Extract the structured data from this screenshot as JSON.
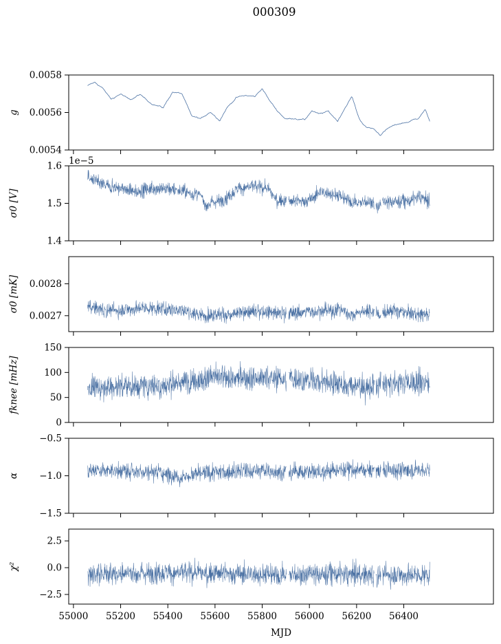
{
  "figure": {
    "title": "000309",
    "xlabel": "MJD",
    "series_color": "#4c72a4"
  },
  "chart_data": [
    {
      "type": "line",
      "ylabel": "g",
      "ylim": [
        0.0054,
        0.0058
      ],
      "yticks": [
        0.0054,
        0.0056,
        0.0058
      ],
      "ytick_labels": [
        "0.0054",
        "0.0056",
        "0.0058"
      ],
      "offset_text": "",
      "xlim": [
        54980,
        56780
      ],
      "xticks": [
        55000,
        55200,
        55400,
        55600,
        55800,
        56000,
        56200,
        56400
      ],
      "xtick_labels_visible": false,
      "series": [
        {
          "values_x": [
            55060,
            55090,
            55120,
            55160,
            55200,
            55240,
            55280,
            55330,
            55380,
            55420,
            55460,
            55500,
            55540,
            55580,
            55620,
            55650,
            55690,
            55730,
            55770,
            55800,
            55830,
            55860,
            55900,
            55940,
            55980,
            56010,
            56040,
            56080,
            56120,
            56150,
            56180,
            56210,
            56240,
            56270,
            56300,
            56340,
            56380,
            56420,
            56460,
            56490,
            56510
          ],
          "values_y": [
            0.005742,
            0.00576,
            0.005735,
            0.00567,
            0.0057,
            0.005665,
            0.005695,
            0.00565,
            0.005625,
            0.00571,
            0.0057,
            0.00558,
            0.005565,
            0.005605,
            0.00556,
            0.005625,
            0.00568,
            0.00569,
            0.005685,
            0.00573,
            0.005665,
            0.005615,
            0.005565,
            0.00557,
            0.00556,
            0.00561,
            0.00559,
            0.005605,
            0.005555,
            0.005625,
            0.005685,
            0.00557,
            0.00552,
            0.005515,
            0.005482,
            0.00552,
            0.00554,
            0.00555,
            0.00557,
            0.005615,
            0.005555
          ],
          "noise": 8e-06,
          "dense": false
        }
      ]
    },
    {
      "type": "line",
      "ylabel": "σ0 [V]",
      "ylim": [
        1.4,
        1.6
      ],
      "yticks": [
        1.4,
        1.5,
        1.6
      ],
      "ytick_labels": [
        "1.4",
        "1.5",
        "1.6"
      ],
      "offset_text": "1e−5",
      "xlim": [
        54980,
        56780
      ],
      "xticks": [
        55000,
        55200,
        55400,
        55600,
        55800,
        56000,
        56200,
        56400
      ],
      "xtick_labels_visible": false,
      "series": [
        {
          "values_x": [
            55060,
            55120,
            55200,
            55260,
            55330,
            55400,
            55450,
            55500,
            55540,
            55560,
            55600,
            55640,
            55700,
            55760,
            55820,
            55860,
            55900,
            55960,
            56010,
            56040,
            56100,
            56160,
            56200,
            56260,
            56290,
            56310,
            56360,
            56420,
            56470,
            56510
          ],
          "values_y": [
            1.57,
            1.55,
            1.54,
            1.53,
            1.54,
            1.54,
            1.535,
            1.525,
            1.52,
            1.495,
            1.505,
            1.51,
            1.54,
            1.545,
            1.54,
            1.51,
            1.505,
            1.505,
            1.51,
            1.53,
            1.525,
            1.51,
            1.5,
            1.505,
            1.49,
            1.5,
            1.505,
            1.505,
            1.52,
            1.5
          ],
          "noise": 0.018,
          "dense": true
        }
      ]
    },
    {
      "type": "line",
      "ylabel": "σ0 [mK]",
      "ylim": [
        0.00265,
        0.002885
      ],
      "yticks": [
        0.0027,
        0.0028
      ],
      "ytick_labels": [
        "0.0027",
        "0.0028"
      ],
      "offset_text": "",
      "xlim": [
        54980,
        56780
      ],
      "xticks": [
        55000,
        55200,
        55400,
        55600,
        55800,
        56000,
        56200,
        56400
      ],
      "xtick_labels_visible": false,
      "series": [
        {
          "values_x": [
            55060,
            55120,
            55180,
            55240,
            55300,
            55360,
            55420,
            55480,
            55540,
            55600,
            55660,
            55720,
            55780,
            55840,
            55900,
            55960,
            56020,
            56080,
            56140,
            56180,
            56220,
            56260,
            56300,
            56340,
            56400,
            56450,
            56510
          ],
          "values_y": [
            0.00273,
            0.00272,
            0.002715,
            0.00272,
            0.002725,
            0.00272,
            0.00272,
            0.002715,
            0.0027,
            0.002705,
            0.0027,
            0.002712,
            0.002712,
            0.00271,
            0.002705,
            0.002712,
            0.002712,
            0.002715,
            0.00272,
            0.0027,
            0.002712,
            0.002715,
            0.002705,
            0.002715,
            0.00271,
            0.002705,
            0.002705
          ],
          "noise": 2.2e-05,
          "dense": true
        }
      ]
    },
    {
      "type": "line",
      "ylabel": "fknee [mHz]",
      "ylim": [
        0,
        150
      ],
      "yticks": [
        0,
        50,
        100,
        150
      ],
      "ytick_labels": [
        "0",
        "50",
        "100",
        "150"
      ],
      "offset_text": "",
      "xlim": [
        54980,
        56780
      ],
      "xticks": [
        55000,
        55200,
        55400,
        55600,
        55800,
        56000,
        56200,
        56400
      ],
      "xtick_labels_visible": false,
      "series": [
        {
          "values_x": [
            55060,
            55200,
            55400,
            55500,
            55600,
            55700,
            55800,
            55900,
            56000,
            56100,
            56200,
            56260,
            56300,
            56400,
            56510
          ],
          "values_y": [
            70,
            72,
            75,
            82,
            92,
            88,
            90,
            88,
            85,
            80,
            72,
            70,
            75,
            80,
            80
          ],
          "noise": 24,
          "dense": true
        }
      ]
    },
    {
      "type": "line",
      "ylabel": "α",
      "ylim": [
        -1.5,
        -0.5
      ],
      "yticks": [
        -1.5,
        -1.0,
        -0.5
      ],
      "ytick_labels": [
        "−1.5",
        "−1.0",
        "−0.5"
      ],
      "offset_text": "",
      "xlim": [
        54980,
        56780
      ],
      "xticks": [
        55000,
        55200,
        55400,
        55600,
        55800,
        56000,
        56200,
        56400
      ],
      "xtick_labels_visible": false,
      "series": [
        {
          "values_x": [
            55060,
            55200,
            55350,
            55450,
            55550,
            55700,
            55850,
            56000,
            56100,
            56200,
            56300,
            56400,
            56510
          ],
          "values_y": [
            -0.92,
            -0.93,
            -0.95,
            -1.02,
            -0.97,
            -0.93,
            -0.94,
            -0.95,
            -0.93,
            -0.92,
            -0.93,
            -0.93,
            -0.92
          ],
          "noise": 0.11,
          "dense": true
        }
      ]
    },
    {
      "type": "line",
      "ylabel": "χ²",
      "ylim": [
        -3.4,
        3.6
      ],
      "yticks": [
        -2.5,
        0.0,
        2.5
      ],
      "ytick_labels": [
        "−2.5",
        "0.0",
        "2.5"
      ],
      "offset_text": "",
      "xlim": [
        54980,
        56780
      ],
      "xticks": [
        55000,
        55200,
        55400,
        55600,
        55800,
        56000,
        56200,
        56400
      ],
      "xtick_labels": [
        "55000",
        "55200",
        "55400",
        "55600",
        "55800",
        "56000",
        "56200",
        "56400"
      ],
      "xtick_labels_visible": true,
      "series": [
        {
          "values_x": [
            55060,
            55300,
            55500,
            55700,
            55900,
            56100,
            56300,
            56510
          ],
          "values_y": [
            -0.6,
            -0.5,
            -0.5,
            -0.6,
            -0.7,
            -0.6,
            -0.7,
            -0.7
          ],
          "noise": 1.0,
          "dense": true
        }
      ]
    }
  ]
}
